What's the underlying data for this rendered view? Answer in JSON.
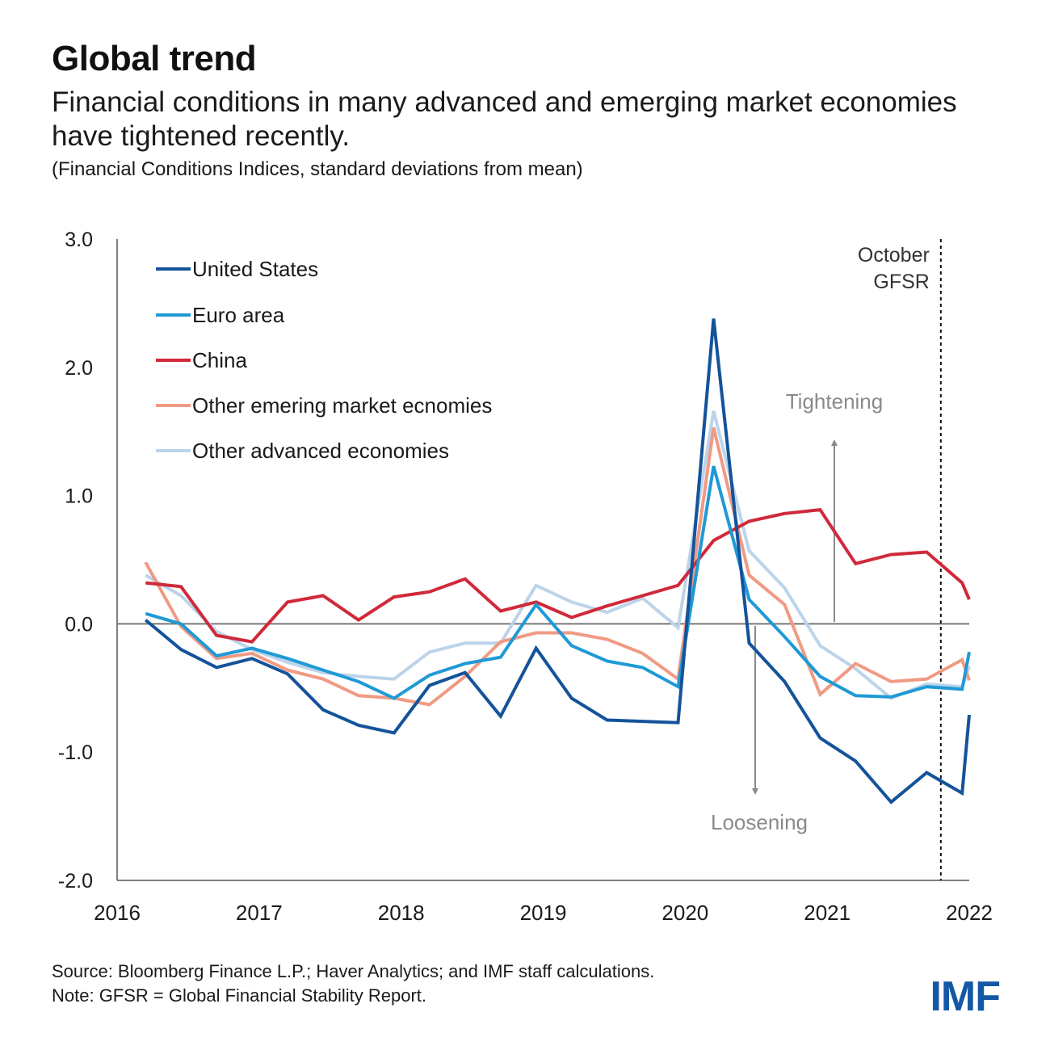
{
  "header": {
    "title": "Global trend",
    "subtitle": "Financial conditions in many advanced and emerging market economies have tightened recently.",
    "units": "(Financial Conditions Indices, standard deviations from mean)"
  },
  "chart_data": {
    "type": "line",
    "ylim": [
      -2.0,
      3.0
    ],
    "yticks": [
      3.0,
      2.0,
      1.0,
      0.0,
      -1.0,
      -2.0
    ],
    "ytick_labels": [
      "3.0",
      "2.0",
      "1.0",
      "0.0",
      "-1.0",
      "-2.0"
    ],
    "xlim": [
      2016,
      2022
    ],
    "xticks": [
      2016,
      2017,
      2018,
      2019,
      2020,
      2021,
      2022
    ],
    "xtick_labels": [
      "2016",
      "2017",
      "2018",
      "2019",
      "2020",
      "2021",
      "2022"
    ],
    "x": [
      2016.2,
      2016.45,
      2016.7,
      2016.95,
      2017.2,
      2017.45,
      2017.7,
      2017.95,
      2018.2,
      2018.45,
      2018.7,
      2018.95,
      2019.2,
      2019.45,
      2019.7,
      2019.95,
      2020.2,
      2020.45,
      2020.7,
      2020.95,
      2021.2,
      2021.45,
      2021.7,
      2021.95,
      2022.0
    ],
    "series": [
      {
        "name": "United States",
        "color": "#14539a",
        "values": [
          0.03,
          -0.2,
          -0.34,
          -0.27,
          -0.39,
          -0.67,
          -0.79,
          -0.85,
          -0.48,
          -0.38,
          -0.72,
          -0.19,
          -0.58,
          -0.75,
          -0.76,
          -0.77,
          2.38,
          -0.15,
          -0.45,
          -0.89,
          -1.07,
          -1.39,
          -1.16,
          -1.32,
          -0.71
        ]
      },
      {
        "name": "Euro area",
        "color": "#1f9ad6",
        "values": [
          0.08,
          0.0,
          -0.25,
          -0.19,
          -0.27,
          -0.36,
          -0.45,
          -0.58,
          -0.4,
          -0.31,
          -0.26,
          0.15,
          -0.17,
          -0.29,
          -0.34,
          -0.49,
          1.23,
          0.19,
          -0.1,
          -0.41,
          -0.56,
          -0.57,
          -0.49,
          -0.51,
          -0.22
        ]
      },
      {
        "name": "China",
        "color": "#d0293a",
        "values": [
          0.32,
          0.29,
          -0.09,
          -0.14,
          0.17,
          0.22,
          0.03,
          0.21,
          0.25,
          0.35,
          0.1,
          0.17,
          0.05,
          0.14,
          0.22,
          0.3,
          0.65,
          0.8,
          0.86,
          0.89,
          0.47,
          0.54,
          0.56,
          0.32,
          0.19
        ]
      },
      {
        "name": "Other emering market ecnomies",
        "color": "#f09a84",
        "values": [
          0.48,
          -0.02,
          -0.27,
          -0.23,
          -0.36,
          -0.43,
          -0.56,
          -0.58,
          -0.63,
          -0.41,
          -0.14,
          -0.07,
          -0.07,
          -0.12,
          -0.23,
          -0.43,
          1.53,
          0.38,
          0.15,
          -0.55,
          -0.31,
          -0.45,
          -0.43,
          -0.28,
          -0.44
        ]
      },
      {
        "name": "Other advanced economies",
        "color": "#bcd4ea",
        "values": [
          0.38,
          0.22,
          -0.06,
          -0.2,
          -0.3,
          -0.38,
          -0.41,
          -0.43,
          -0.22,
          -0.15,
          -0.15,
          0.3,
          0.17,
          0.09,
          0.2,
          -0.03,
          1.66,
          0.57,
          0.28,
          -0.17,
          -0.35,
          -0.58,
          -0.47,
          -0.49,
          -0.33
        ]
      }
    ],
    "annotations": {
      "vline_x": 2021.8,
      "vline_label": [
        "October",
        "GFSR"
      ],
      "up_arrow_label": "Tightening",
      "down_arrow_label": "Loosening"
    },
    "legend_position": "top-left",
    "grid": false
  },
  "footer": {
    "source": "Source: Bloomberg Finance L.P.; Haver Analytics; and IMF staff calculations.",
    "note": "Note: GFSR = Global Financial Stability Report."
  },
  "logo": {
    "text": "IMF",
    "color": "#1457a6"
  }
}
